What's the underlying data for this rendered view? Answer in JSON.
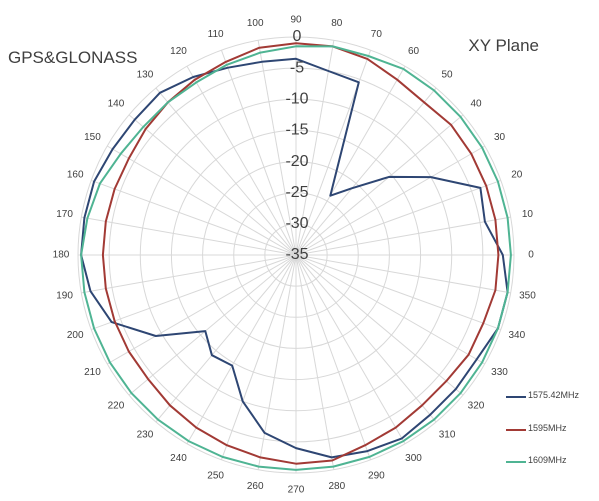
{
  "titles": {
    "left": "GPS&GLONASS",
    "right": "XY Plane"
  },
  "colors": {
    "grid": "#d8d8d8",
    "axis": "#808080",
    "text": "#404040"
  },
  "chart_data": {
    "type": "polar-line",
    "radial_axis": {
      "min": -35,
      "max": 0,
      "step": 5,
      "labels": [
        "-35",
        "-30",
        "-25",
        "-20",
        "-15",
        "-10",
        "-5",
        "0"
      ]
    },
    "angular_axis": {
      "unit": "deg",
      "step": 10,
      "labels": [
        "0",
        "10",
        "20",
        "30",
        "40",
        "50",
        "60",
        "70",
        "80",
        "90",
        "100",
        "110",
        "120",
        "130",
        "140",
        "150",
        "160",
        "170",
        "180",
        "190",
        "200",
        "210",
        "220",
        "230",
        "240",
        "250",
        "260",
        "270",
        "280",
        "290",
        "300",
        "310",
        "320",
        "330",
        "340",
        "350"
      ]
    },
    "angles": [
      0,
      10,
      20,
      30,
      40,
      50,
      60,
      70,
      80,
      90,
      100,
      110,
      120,
      130,
      140,
      150,
      160,
      170,
      180,
      190,
      200,
      210,
      220,
      230,
      240,
      250,
      260,
      270,
      280,
      290,
      300,
      310,
      320,
      330,
      340,
      350
    ],
    "series": [
      {
        "name": "1575.42MHz",
        "color": "#2e4673",
        "values": [
          -1.8,
          -4.2,
          -3.5,
          -10,
          -15.5,
          -21,
          -24,
          -5.5,
          -5,
          -3.5,
          -3.5,
          -3,
          -2,
          -1,
          -1.2,
          -1,
          -0.5,
          -0.5,
          -0.5,
          -1.5,
          -3.5,
          -9,
          -16,
          -14,
          -14.5,
          -10,
          -6,
          -4,
          -2,
          -1.5,
          -1,
          -1.5,
          -1.5,
          -1.5,
          -0.5,
          -0.5
        ]
      },
      {
        "name": "1595MHz",
        "color": "#a23a35",
        "values": [
          -2.5,
          -2.5,
          -2.5,
          -2.5,
          -2.5,
          -3,
          -2.5,
          -1.5,
          -1,
          -1,
          -1.2,
          -2,
          -2.5,
          -3,
          -3.5,
          -4,
          -4,
          -4,
          -4,
          -4,
          -4,
          -4,
          -4,
          -3.5,
          -3,
          -2.5,
          -2,
          -1.5,
          -1.5,
          -2.5,
          -3,
          -3.5,
          -3.5,
          -3,
          -3,
          -2.5
        ]
      },
      {
        "name": "1609MHz",
        "color": "#4fb493",
        "values": [
          -0.5,
          -0.5,
          -0.5,
          -0.5,
          -0.5,
          -0.5,
          -0.5,
          -1,
          -1,
          -1.5,
          -2,
          -2.5,
          -3,
          -3,
          -3,
          -2.5,
          -1.5,
          -1,
          -0.5,
          -0.5,
          -0.5,
          -0.5,
          -0.5,
          -0.5,
          -0.5,
          -0.5,
          -0.5,
          -0.5,
          -0.5,
          -0.5,
          -0.5,
          -0.5,
          -0.5,
          -0.5,
          -0.5,
          -0.5
        ]
      }
    ]
  }
}
